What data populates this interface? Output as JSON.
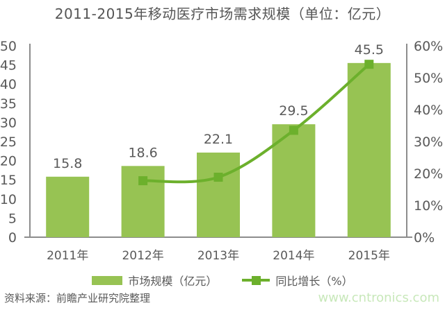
{
  "title": "2011-2015年移动医疗市场需求规模（单位：亿元）",
  "footer": {
    "source_note": "资料来源：前瞻产业研究院整理",
    "watermark": "www.cntronics.com"
  },
  "colors": {
    "bar": "#97C353",
    "line": "#6CB02C",
    "axis_line": "#8C8C8C",
    "text": "#595959",
    "watermark_green": "#C8E8BA"
  },
  "chart_data": {
    "type": "bar",
    "title": "2011-2015年移动医疗市场需求规模（单位：亿元）",
    "categories": [
      "2011年",
      "2012年",
      "2013年",
      "2014年",
      "2015年"
    ],
    "series": [
      {
        "name": "市场规模（亿元）",
        "type": "bar",
        "axis": "left",
        "values": [
          15.8,
          18.6,
          22.1,
          29.5,
          45.5
        ],
        "data_labels": [
          "15.8",
          "18.6",
          "22.1",
          "29.5",
          "45.5"
        ]
      },
      {
        "name": "同比增长（%）",
        "type": "line",
        "axis": "right",
        "values": [
          null,
          17.7,
          18.8,
          33.5,
          54.2
        ],
        "smooth": true
      }
    ],
    "left_axis": {
      "min": 0,
      "max": 50,
      "step": 5,
      "tick_labels": [
        "0",
        "5",
        "10",
        "15",
        "20",
        "25",
        "30",
        "35",
        "40",
        "45",
        "50"
      ]
    },
    "right_axis": {
      "min": 0,
      "max": 60,
      "step": 10,
      "tick_labels": [
        "0%",
        "10%",
        "20%",
        "30%",
        "40%",
        "50%",
        "60%"
      ]
    },
    "legend": [
      {
        "label": "市场规模（亿元）",
        "marker": "bar"
      },
      {
        "label": "同比增长（%）",
        "marker": "line"
      }
    ],
    "grid": false,
    "legend_position": "bottom"
  }
}
